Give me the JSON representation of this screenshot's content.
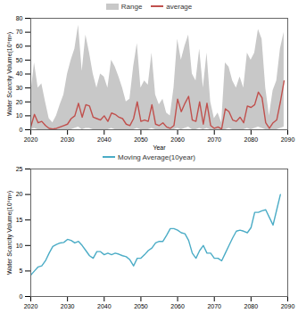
{
  "chart_data": [
    {
      "type": "line",
      "x": [
        2020,
        2021,
        2022,
        2023,
        2024,
        2025,
        2026,
        2027,
        2028,
        2029,
        2030,
        2031,
        2032,
        2033,
        2034,
        2035,
        2036,
        2037,
        2038,
        2039,
        2040,
        2041,
        2042,
        2043,
        2044,
        2045,
        2046,
        2047,
        2048,
        2049,
        2050,
        2051,
        2052,
        2053,
        2054,
        2055,
        2056,
        2057,
        2058,
        2059,
        2060,
        2061,
        2062,
        2063,
        2064,
        2065,
        2066,
        2067,
        2068,
        2069,
        2070,
        2071,
        2072,
        2073,
        2074,
        2075,
        2076,
        2077,
        2078,
        2079,
        2080,
        2081,
        2082,
        2083,
        2084,
        2085,
        2086,
        2087,
        2088,
        2089
      ],
      "x_label": "Year",
      "y_label": "Water Scarcity Volume(10⁶m³)",
      "xlim": [
        2020,
        2090
      ],
      "xticks": [
        2020,
        2030,
        2040,
        2050,
        2060,
        2070,
        2080,
        2090
      ],
      "ylim": [
        0,
        80
      ],
      "yticks": [
        0,
        10,
        20,
        30,
        40,
        50,
        60,
        70,
        80
      ],
      "grid": false,
      "legend": "top",
      "series": [
        {
          "name": "Range",
          "type": "area",
          "color": "#c8c8c8",
          "lower": [
            0,
            1,
            0,
            0,
            0,
            0,
            0,
            0,
            0,
            0,
            0,
            0,
            1,
            2,
            0,
            1,
            1,
            0,
            0,
            0,
            0,
            0,
            1,
            0,
            0,
            0,
            0,
            0,
            0,
            1,
            0,
            0,
            0,
            1,
            0,
            0,
            0,
            0,
            0,
            0,
            1,
            0,
            1,
            2,
            0,
            0,
            1,
            0,
            1,
            0,
            0,
            0,
            0,
            0,
            1,
            0,
            0,
            0,
            0,
            1,
            0,
            1,
            2,
            1,
            0,
            0,
            0,
            0,
            1,
            2
          ],
          "values": [
            25,
            48,
            30,
            33,
            20,
            8,
            5,
            10,
            18,
            25,
            40,
            50,
            58,
            75,
            42,
            68,
            55,
            40,
            30,
            40,
            38,
            30,
            50,
            45,
            38,
            30,
            20,
            22,
            45,
            62,
            30,
            35,
            32,
            55,
            25,
            18,
            22,
            12,
            10,
            30,
            65,
            50,
            60,
            68,
            40,
            35,
            58,
            30,
            55,
            20,
            8,
            12,
            5,
            48,
            45,
            35,
            30,
            38,
            30,
            55,
            50,
            55,
            72,
            65,
            30,
            10,
            28,
            35,
            58,
            70
          ]
        },
        {
          "name": "average",
          "type": "line",
          "color": "#c0504d",
          "values": [
            2,
            11,
            5,
            6,
            3,
            1,
            0.5,
            1,
            2,
            3,
            4,
            8,
            10,
            19,
            9,
            18,
            17,
            9,
            8,
            7,
            10,
            6,
            12,
            11,
            9,
            8,
            4,
            3,
            8,
            20,
            6,
            7,
            6,
            18,
            4,
            3,
            5,
            2,
            1,
            3,
            22,
            13,
            19,
            24,
            7,
            6,
            20,
            4,
            19,
            3,
            1,
            2,
            0.5,
            15,
            13,
            7,
            6,
            9,
            5,
            17,
            16,
            18,
            27,
            23,
            5,
            1,
            5,
            7,
            20,
            35
          ]
        }
      ]
    },
    {
      "type": "line",
      "x": [
        2020,
        2021,
        2022,
        2023,
        2024,
        2025,
        2026,
        2027,
        2028,
        2029,
        2030,
        2031,
        2032,
        2033,
        2034,
        2035,
        2036,
        2037,
        2038,
        2039,
        2040,
        2041,
        2042,
        2043,
        2044,
        2045,
        2046,
        2047,
        2048,
        2049,
        2050,
        2051,
        2052,
        2053,
        2054,
        2055,
        2056,
        2057,
        2058,
        2059,
        2060,
        2061,
        2062,
        2063,
        2064,
        2065,
        2066,
        2067,
        2068,
        2069,
        2070,
        2071,
        2072,
        2073,
        2074,
        2075,
        2076,
        2077,
        2078,
        2079,
        2080,
        2081,
        2082,
        2083,
        2084,
        2085,
        2086,
        2087,
        2088
      ],
      "y_label": "Water Scarcity Volume(10⁶m³)",
      "xlim": [
        2020,
        2090
      ],
      "xticks": [
        2020,
        2030,
        2040,
        2050,
        2060,
        2070,
        2080,
        2090
      ],
      "ylim": [
        0,
        25
      ],
      "yticks": [
        0,
        5,
        10,
        15,
        20,
        25
      ],
      "grid": false,
      "legend": "top",
      "series": [
        {
          "name": "Moving Average(10year)",
          "type": "line",
          "color": "#4bacc6",
          "values": [
            4.2,
            5,
            5.8,
            6,
            7,
            8.5,
            9.8,
            10.2,
            10.5,
            10.6,
            11.2,
            11,
            10.5,
            10.8,
            10,
            9,
            8,
            7.5,
            8.8,
            8.8,
            8.2,
            8.5,
            8.2,
            8.5,
            8.3,
            8,
            7.8,
            7.2,
            6,
            7.5,
            7.5,
            8.2,
            9,
            9.5,
            10.5,
            10.8,
            10.8,
            12,
            13.3,
            13.3,
            13,
            12.5,
            12.3,
            11,
            8.5,
            7.5,
            9,
            10,
            8.5,
            8.5,
            7.5,
            7.5,
            7,
            8.5,
            10,
            11.5,
            12.8,
            13,
            12.8,
            12.5,
            13.5,
            16.5,
            16.5,
            16.8,
            17,
            15.5,
            14,
            17,
            20
          ]
        }
      ]
    }
  ]
}
